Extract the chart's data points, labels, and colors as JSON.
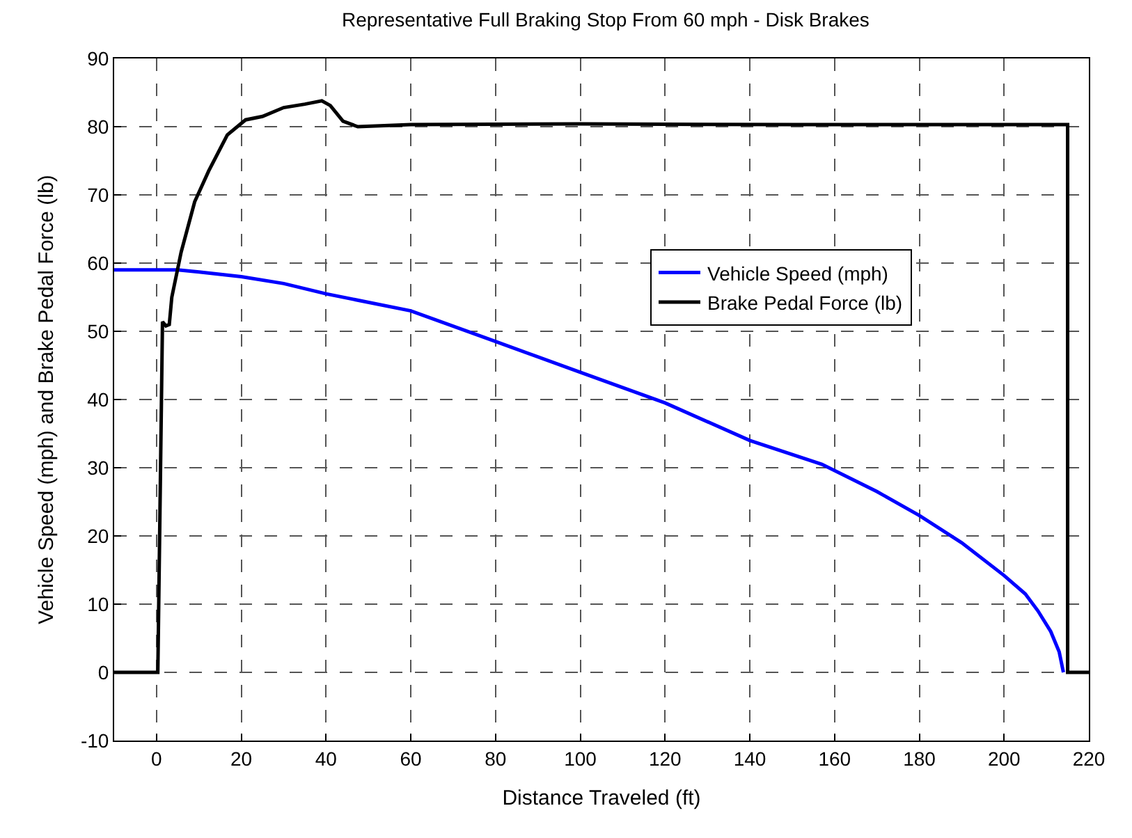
{
  "chart_data": {
    "type": "line",
    "title": "Representative Full Braking Stop From 60 mph - Disk Brakes",
    "xlabel": "Distance Traveled (ft)",
    "ylabel": "Vehicle Speed (mph) and Brake Pedal Force (lb)",
    "series": [
      {
        "name": "Vehicle Speed (mph)",
        "color": "#0000ff",
        "x": [
          -10,
          0,
          5,
          10,
          20,
          30,
          40,
          60,
          80,
          100,
          120,
          140,
          157,
          170,
          180,
          190,
          200,
          205,
          208,
          211,
          213,
          214
        ],
        "values": [
          59,
          59,
          59,
          58.7,
          58,
          57,
          55.5,
          53,
          48.5,
          44,
          39.5,
          34,
          30.5,
          26.5,
          23,
          19,
          14.2,
          11.5,
          9,
          6,
          3,
          0
        ]
      },
      {
        "name": "Brake Pedal Force (lb)",
        "color": "#000000",
        "x": [
          -10,
          0,
          0.3,
          1.4,
          2.2,
          3,
          3.6,
          5.8,
          9,
          12.3,
          16.7,
          21,
          25,
          30,
          35,
          39,
          41,
          44,
          47.5,
          60,
          100,
          150,
          200,
          215,
          215,
          220
        ],
        "values": [
          0,
          0,
          0,
          51.4,
          50.8,
          51,
          55,
          61.6,
          69,
          73.5,
          78.8,
          81,
          81.5,
          82.8,
          83.3,
          83.8,
          83.1,
          80.8,
          80,
          80.3,
          80.4,
          80.3,
          80.3,
          80.3,
          0,
          0
        ]
      }
    ],
    "xlim": [
      -10,
      220
    ],
    "xticks": [
      0,
      20,
      40,
      60,
      80,
      100,
      120,
      140,
      160,
      180,
      200,
      220
    ],
    "ylim": [
      -10,
      90
    ],
    "yticks": [
      -10,
      0,
      10,
      20,
      30,
      40,
      50,
      60,
      70,
      80,
      90
    ],
    "grid": true,
    "legend": "right",
    "line_style": "solid",
    "marker": "none"
  }
}
